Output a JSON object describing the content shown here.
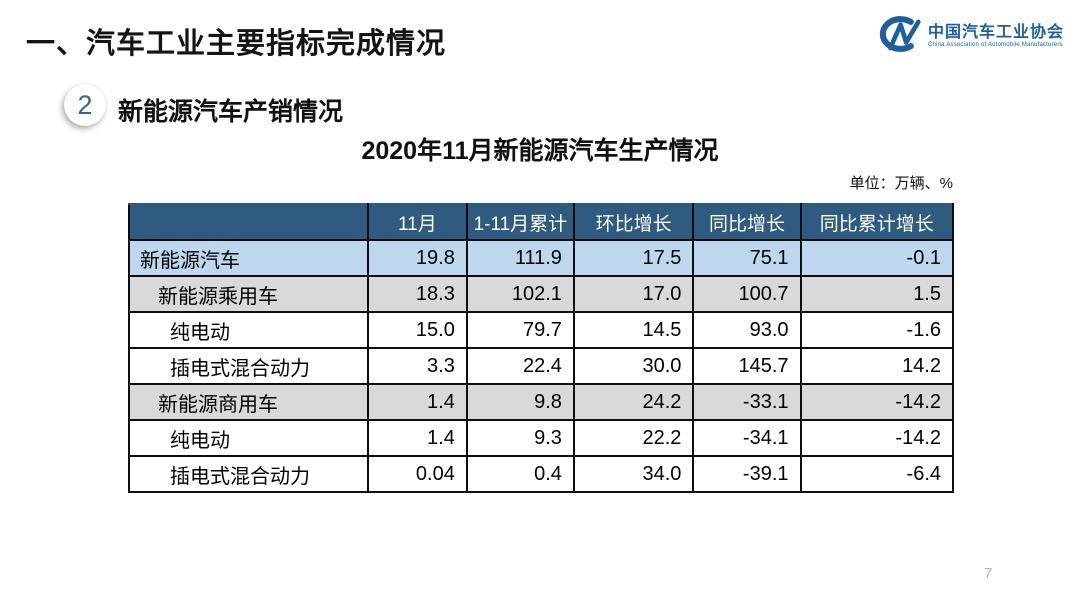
{
  "slide": {
    "header_title": "一、汽车工业主要指标完成情况",
    "page_number": "7"
  },
  "logo": {
    "mark_icon": "cm-swoosh-logo",
    "org_name_zh": "中国汽车工业协会",
    "org_name_en": "China Association of Automobile Manufacturers",
    "brand_color": "#1e5fa0"
  },
  "section": {
    "badge_number": "2",
    "title": "新能源汽车产销情况"
  },
  "table_block": {
    "title": "2020年11月新能源汽车生产情况",
    "unit_label": "单位：万辆、%"
  },
  "chart_data": {
    "type": "table",
    "title": "2020年11月新能源汽车生产情况",
    "unit": "万辆、%",
    "columns": [
      "",
      "11月",
      "1-11月累计",
      "环比增长",
      "同比增长",
      "同比累计增长"
    ],
    "rows": [
      {
        "label": "新能源汽车",
        "indent": 0,
        "bg": "blue",
        "values": [
          "19.8",
          "111.9",
          "17.5",
          "75.1",
          "-0.1"
        ]
      },
      {
        "label": "新能源乘用车",
        "indent": 1,
        "bg": "gray",
        "values": [
          "18.3",
          "102.1",
          "17.0",
          "100.7",
          "1.5"
        ]
      },
      {
        "label": "纯电动",
        "indent": 2,
        "bg": "white",
        "values": [
          "15.0",
          "79.7",
          "14.5",
          "93.0",
          "-1.6"
        ]
      },
      {
        "label": "插电式混合动力",
        "indent": 2,
        "bg": "white",
        "values": [
          "3.3",
          "22.4",
          "30.0",
          "145.7",
          "14.2"
        ]
      },
      {
        "label": "新能源商用车",
        "indent": 1,
        "bg": "gray",
        "values": [
          "1.4",
          "9.8",
          "24.2",
          "-33.1",
          "-14.2"
        ]
      },
      {
        "label": "纯电动",
        "indent": 2,
        "bg": "white",
        "values": [
          "1.4",
          "9.3",
          "22.2",
          "-34.1",
          "-14.2"
        ]
      },
      {
        "label": "插电式混合动力",
        "indent": 2,
        "bg": "white",
        "values": [
          "0.04",
          "0.4",
          "34.0",
          "-39.1",
          "-6.4"
        ]
      }
    ],
    "column_widths_pct": [
      29,
      12,
      13,
      14.5,
      13,
      18.5
    ],
    "colors": {
      "header_bg": "#2e5b7f",
      "row_highlight_blue": "#bdd7ee",
      "row_gray": "#d9d9d9",
      "border": "#0d0d0d"
    }
  }
}
